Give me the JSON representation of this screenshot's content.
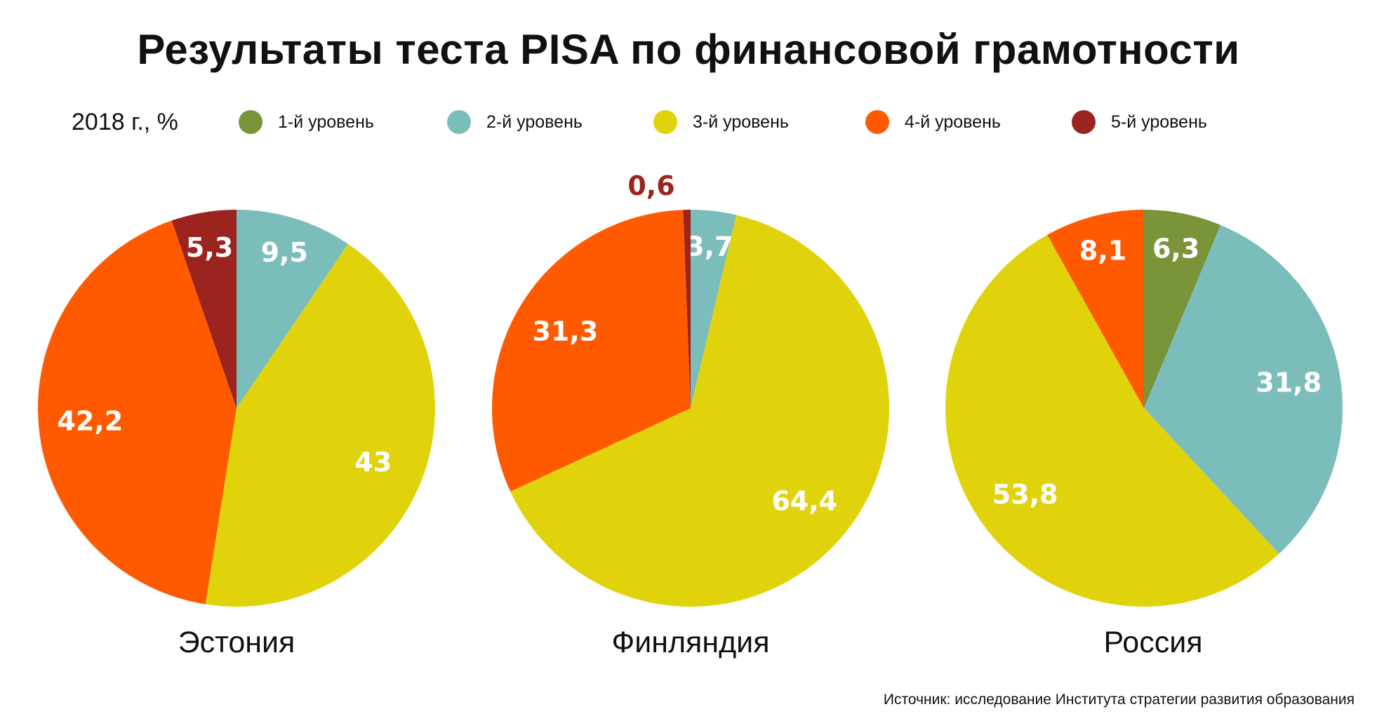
{
  "title": "Результаты теста PISA по финансовой грамотности",
  "subtitle": "2018 г., %",
  "source": "Источник: исследование Института стратегии развития образования",
  "colors": {
    "l1": "#7a943a",
    "l2": "#7bbdbb",
    "l3": "#e1d30b",
    "l4": "#ff5a00",
    "l5": "#9b241e"
  },
  "legend": [
    {
      "key": "l1",
      "label": "1-й уровень"
    },
    {
      "key": "l2",
      "label": "2-й уровень"
    },
    {
      "key": "l3",
      "label": "3-й уровень"
    },
    {
      "key": "l4",
      "label": "4-й уровень"
    },
    {
      "key": "l5",
      "label": "5-й уровень"
    }
  ],
  "chart_data": [
    {
      "type": "pie",
      "title": "Эстония",
      "slices": [
        {
          "key": "l2",
          "value": 9.5,
          "label": "9,5"
        },
        {
          "key": "l3",
          "value": 43,
          "label": "43"
        },
        {
          "key": "l4",
          "value": 42.2,
          "label": "42,2"
        },
        {
          "key": "l5",
          "value": 5.3,
          "label": "5,3"
        }
      ]
    },
    {
      "type": "pie",
      "title": "Финляндия",
      "slices": [
        {
          "key": "l2",
          "value": 3.7,
          "label": "3,7"
        },
        {
          "key": "l3",
          "value": 64.4,
          "label": "64,4"
        },
        {
          "key": "l4",
          "value": 31.3,
          "label": "31,3"
        },
        {
          "key": "l5",
          "value": 0.6,
          "label": "0,6"
        }
      ]
    },
    {
      "type": "pie",
      "title": "Россия",
      "slices": [
        {
          "key": "l1",
          "value": 6.3,
          "label": "6,3"
        },
        {
          "key": "l2",
          "value": 31.8,
          "label": "31,8"
        },
        {
          "key": "l3",
          "value": 53.8,
          "label": "53,8"
        },
        {
          "key": "l4",
          "value": 8.1,
          "label": "8,1"
        }
      ]
    }
  ]
}
